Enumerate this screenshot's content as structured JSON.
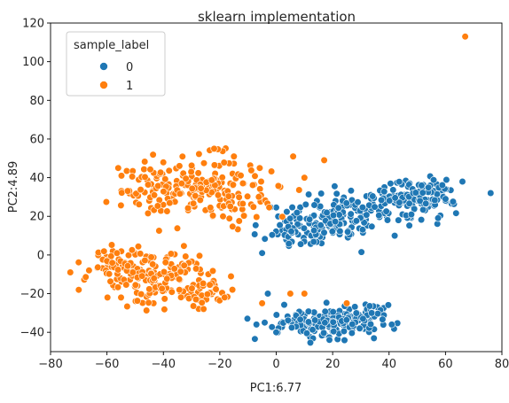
{
  "chart_data": {
    "type": "scatter",
    "title": "sklearn implementation",
    "xlabel": "PC1:6.77",
    "ylabel": "PC2:4.89",
    "xlim": [
      -80,
      80
    ],
    "ylim": [
      -50,
      120
    ],
    "xticks": [
      -80,
      -60,
      -40,
      -20,
      0,
      20,
      40,
      60,
      80
    ],
    "yticks": [
      -40,
      -20,
      0,
      20,
      40,
      60,
      80,
      100,
      120
    ],
    "grid": false,
    "legend": {
      "title": "sample_label",
      "placement": "top-left"
    },
    "series": [
      {
        "name": "0",
        "color": "#1f77b4",
        "clusters": [
          {
            "cx": 10,
            "cy": 15,
            "sx": 7,
            "sy": 6,
            "n": 90,
            "seed": 11
          },
          {
            "cx": 25,
            "cy": 20,
            "sx": 8,
            "sy": 6,
            "n": 90,
            "seed": 12
          },
          {
            "cx": 45,
            "cy": 28,
            "sx": 8,
            "sy": 5,
            "n": 100,
            "seed": 13
          },
          {
            "cx": 58,
            "cy": 32,
            "sx": 6,
            "sy": 4,
            "n": 40,
            "seed": 14
          },
          {
            "cx": 15,
            "cy": -35,
            "sx": 8,
            "sy": 4,
            "n": 110,
            "seed": 15
          },
          {
            "cx": 30,
            "cy": -33,
            "sx": 6,
            "sy": 4,
            "n": 80,
            "seed": 16
          }
        ],
        "points": [
          [
            76,
            32
          ],
          [
            -5,
            1
          ],
          [
            -7,
            -36
          ],
          [
            -3,
            -20
          ],
          [
            0,
            -40
          ],
          [
            42,
            10
          ],
          [
            66,
            38
          ],
          [
            60,
            29
          ]
        ]
      },
      {
        "name": "1",
        "color": "#ff7f0e",
        "clusters": [
          {
            "cx": -45,
            "cy": 33,
            "sx": 6,
            "sy": 6,
            "n": 40,
            "seed": 21
          },
          {
            "cx": -28,
            "cy": 35,
            "sx": 9,
            "sy": 8,
            "n": 140,
            "seed": 22
          },
          {
            "cx": -8,
            "cy": 30,
            "sx": 7,
            "sy": 6,
            "n": 40,
            "seed": 23
          },
          {
            "cx": -60,
            "cy": -5,
            "sx": 5,
            "sy": 5,
            "n": 40,
            "seed": 24
          },
          {
            "cx": -42,
            "cy": -12,
            "sx": 8,
            "sy": 6,
            "n": 140,
            "seed": 25
          },
          {
            "cx": -25,
            "cy": -18,
            "sx": 6,
            "sy": 5,
            "n": 40,
            "seed": 26
          }
        ],
        "points": [
          [
            67,
            113
          ],
          [
            -73,
            -9
          ],
          [
            -70,
            -18
          ],
          [
            -56,
            45
          ],
          [
            -22,
            55
          ],
          [
            -15,
            51
          ],
          [
            6,
            51
          ],
          [
            17,
            49
          ],
          [
            10,
            40
          ],
          [
            -5,
            -25
          ],
          [
            5,
            -20
          ],
          [
            10,
            -20
          ],
          [
            25,
            -25
          ],
          [
            -55,
            -22
          ]
        ]
      }
    ]
  }
}
